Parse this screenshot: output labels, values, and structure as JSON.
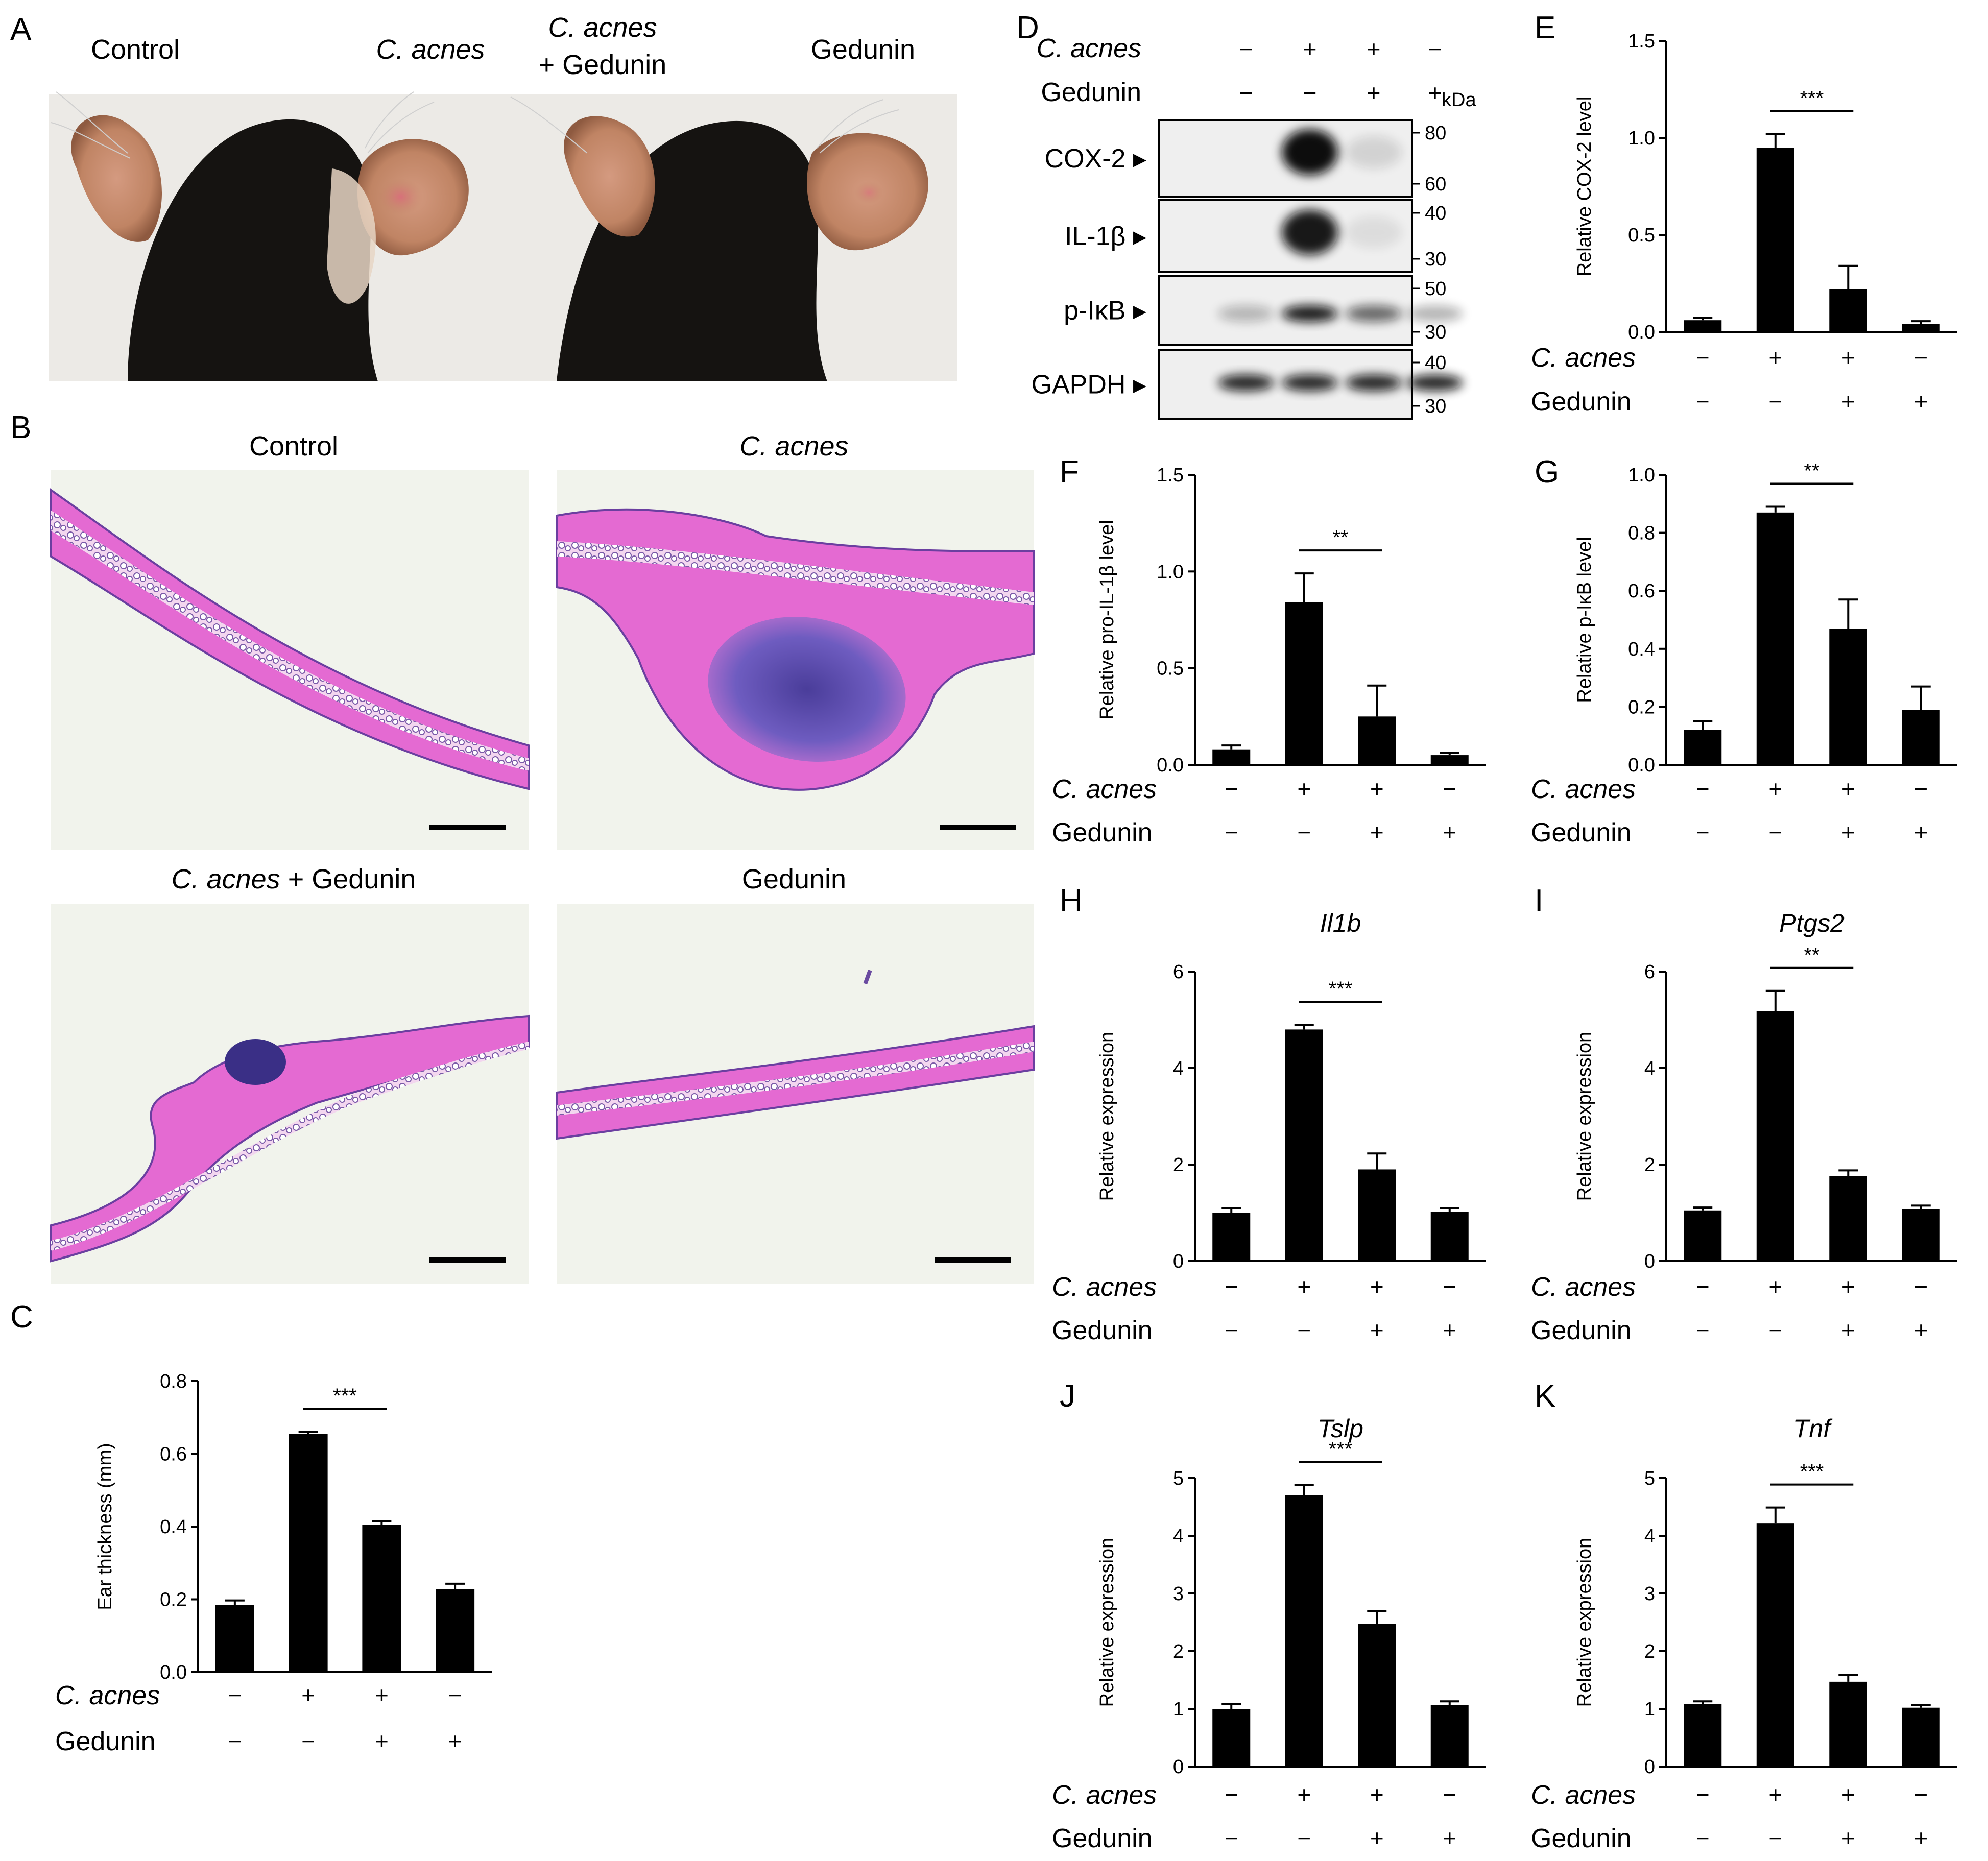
{
  "figure": {
    "panel_letters": [
      "A",
      "B",
      "C",
      "D",
      "E",
      "F",
      "G",
      "H",
      "I",
      "J",
      "K"
    ],
    "condition_labels": {
      "c_acnes": "C. acnes",
      "gedunin": "Gedunin",
      "minus": "−",
      "plus": "+"
    },
    "colors": {
      "bar": "#000000",
      "axis": "#000000",
      "stain_pink": "#e060c8",
      "stain_purple": "#5a4fb0",
      "fur": "#151311",
      "ear": "#c89070"
    }
  },
  "panel_a": {
    "labels": [
      "Control",
      "C. acnes",
      "C. acnes",
      "+ Gedunin",
      "Gedunin"
    ]
  },
  "panel_b": {
    "titles": [
      "Control",
      "C. acnes",
      "C. acnes",
      "+ Gedunin",
      "Gedunin"
    ]
  },
  "panel_d": {
    "header_rows": [
      {
        "label": "C. acnes",
        "signs": [
          "−",
          "+",
          "+",
          "−"
        ]
      },
      {
        "label": "Gedunin",
        "signs": [
          "−",
          "−",
          "+",
          "+"
        ]
      }
    ],
    "unit": "kDa",
    "blots": [
      {
        "name": "COX-2",
        "markers": [
          "80",
          "60"
        ],
        "intensity": [
          0.0,
          1.0,
          0.12,
          0.0
        ]
      },
      {
        "name": "IL-1β",
        "markers": [
          "40",
          "30"
        ],
        "intensity": [
          0.0,
          0.95,
          0.08,
          0.0
        ]
      },
      {
        "name": "p-IκB",
        "markers": [
          "50",
          "30"
        ],
        "intensity": [
          0.25,
          0.95,
          0.6,
          0.3
        ]
      },
      {
        "name": "GAPDH",
        "markers": [
          "40",
          "30"
        ],
        "intensity": [
          0.9,
          0.9,
          0.9,
          0.9
        ]
      }
    ]
  },
  "chart_data": [
    {
      "panel": "C",
      "type": "bar",
      "title": "",
      "xlabel": "",
      "ylabel": "Ear thickness (mm)",
      "categories": [
        "Control",
        "C. acnes",
        "C. acnes + Gedunin",
        "Gedunin"
      ],
      "values": [
        0.185,
        0.655,
        0.405,
        0.228
      ],
      "errors": [
        0.012,
        0.006,
        0.01,
        0.015
      ],
      "ylim": [
        0,
        0.8
      ],
      "yticks": [
        "0.0",
        "0.2",
        "0.4",
        "0.6",
        "0.8"
      ],
      "significance": "***",
      "row_labels": [
        "C. acnes",
        "Gedunin"
      ],
      "row_signs": [
        [
          "−",
          "+",
          "+",
          "−"
        ],
        [
          "−",
          "−",
          "+",
          "+"
        ]
      ]
    },
    {
      "panel": "E",
      "type": "bar",
      "title": "",
      "xlabel": "",
      "ylabel": "Relative COX-2 level",
      "categories": [
        "Control",
        "C. acnes",
        "C. acnes + Gedunin",
        "Gedunin"
      ],
      "values": [
        0.06,
        0.95,
        0.22,
        0.04
      ],
      "errors": [
        0.012,
        0.07,
        0.12,
        0.015
      ],
      "ylim": [
        0,
        1.5
      ],
      "yticks": [
        "0.0",
        "0.5",
        "1.0",
        "1.5"
      ],
      "significance": "***",
      "row_labels": [
        "C. acnes",
        "Gedunin"
      ],
      "row_signs": [
        [
          "−",
          "+",
          "+",
          "−"
        ],
        [
          "−",
          "−",
          "+",
          "+"
        ]
      ]
    },
    {
      "panel": "F",
      "type": "bar",
      "title": "",
      "xlabel": "",
      "ylabel": "Relative pro-IL-1β level",
      "categories": [
        "Control",
        "C. acnes",
        "C. acnes + Gedunin",
        "Gedunin"
      ],
      "values": [
        0.08,
        0.84,
        0.25,
        0.05
      ],
      "errors": [
        0.02,
        0.15,
        0.16,
        0.012
      ],
      "ylim": [
        0,
        1.5
      ],
      "yticks": [
        "0.0",
        "0.5",
        "1.0",
        "1.5"
      ],
      "significance": "**",
      "row_labels": [
        "C. acnes",
        "Gedunin"
      ],
      "row_signs": [
        [
          "−",
          "+",
          "+",
          "−"
        ],
        [
          "−",
          "−",
          "+",
          "+"
        ]
      ]
    },
    {
      "panel": "G",
      "type": "bar",
      "title": "",
      "xlabel": "",
      "ylabel": "Relative p-IκB level",
      "categories": [
        "Control",
        "C. acnes",
        "C. acnes + Gedunin",
        "Gedunin"
      ],
      "values": [
        0.12,
        0.87,
        0.47,
        0.19
      ],
      "errors": [
        0.03,
        0.02,
        0.1,
        0.08
      ],
      "ylim": [
        0,
        1.0
      ],
      "yticks": [
        "0.0",
        "0.2",
        "0.4",
        "0.6",
        "0.8",
        "1.0"
      ],
      "significance": "**",
      "row_labels": [
        "C. acnes",
        "Gedunin"
      ],
      "row_signs": [
        [
          "−",
          "+",
          "+",
          "−"
        ],
        [
          "−",
          "−",
          "+",
          "+"
        ]
      ]
    },
    {
      "panel": "H",
      "type": "bar",
      "title": "Il1b",
      "xlabel": "",
      "ylabel": "Relative expression",
      "categories": [
        "Control",
        "C. acnes",
        "C. acnes + Gedunin",
        "Gedunin"
      ],
      "values": [
        1.0,
        4.8,
        1.9,
        1.02
      ],
      "errors": [
        0.1,
        0.1,
        0.33,
        0.08
      ],
      "ylim": [
        0,
        6
      ],
      "yticks": [
        "0",
        "2",
        "4",
        "6"
      ],
      "significance": "***",
      "row_labels": [
        "C. acnes",
        "Gedunin"
      ],
      "row_signs": [
        [
          "−",
          "+",
          "+",
          "−"
        ],
        [
          "−",
          "−",
          "+",
          "+"
        ]
      ]
    },
    {
      "panel": "I",
      "type": "bar",
      "title": "Ptgs2",
      "xlabel": "",
      "ylabel": "Relative expression",
      "categories": [
        "Control",
        "C. acnes",
        "C. acnes + Gedunin",
        "Gedunin"
      ],
      "values": [
        1.05,
        5.18,
        1.76,
        1.08
      ],
      "errors": [
        0.06,
        0.42,
        0.12,
        0.07
      ],
      "ylim": [
        0,
        6
      ],
      "yticks": [
        "0",
        "2",
        "4",
        "6"
      ],
      "significance": "**",
      "row_labels": [
        "C. acnes",
        "Gedunin"
      ],
      "row_signs": [
        [
          "−",
          "+",
          "+",
          "−"
        ],
        [
          "−",
          "−",
          "+",
          "+"
        ]
      ]
    },
    {
      "panel": "J",
      "type": "bar",
      "title": "Tslp",
      "xlabel": "",
      "ylabel": "Relative expression",
      "categories": [
        "Control",
        "C. acnes",
        "C. acnes + Gedunin",
        "Gedunin"
      ],
      "values": [
        1.0,
        4.7,
        2.47,
        1.07
      ],
      "errors": [
        0.08,
        0.18,
        0.22,
        0.06
      ],
      "ylim": [
        0,
        5
      ],
      "yticks": [
        "0",
        "1",
        "2",
        "3",
        "4",
        "5"
      ],
      "significance": "***",
      "row_labels": [
        "C. acnes",
        "Gedunin"
      ],
      "row_signs": [
        [
          "−",
          "+",
          "+",
          "−"
        ],
        [
          "−",
          "−",
          "+",
          "+"
        ]
      ]
    },
    {
      "panel": "K",
      "type": "bar",
      "title": "Tnf",
      "xlabel": "",
      "ylabel": "Relative expression",
      "categories": [
        "Control",
        "C. acnes",
        "C. acnes + Gedunin",
        "Gedunin"
      ],
      "values": [
        1.08,
        4.22,
        1.47,
        1.02
      ],
      "errors": [
        0.05,
        0.27,
        0.12,
        0.05
      ],
      "ylim": [
        0,
        5
      ],
      "yticks": [
        "0",
        "1",
        "2",
        "3",
        "4",
        "5"
      ],
      "significance": "***",
      "row_labels": [
        "C. acnes",
        "Gedunin"
      ],
      "row_signs": [
        [
          "−",
          "+",
          "+",
          "−"
        ],
        [
          "−",
          "−",
          "+",
          "+"
        ]
      ]
    }
  ]
}
